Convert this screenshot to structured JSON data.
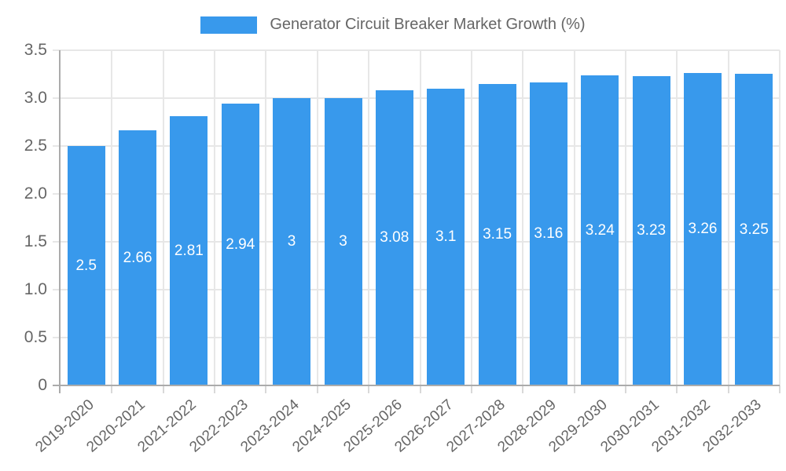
{
  "legend": {
    "label": "Generator Circuit Breaker Market Growth (%)"
  },
  "chart_data": {
    "type": "bar",
    "title": "Generator Circuit Breaker Market Growth (%)",
    "legend_position": "top",
    "categories": [
      "2019-2020",
      "2020-2021",
      "2021-2022",
      "2022-2023",
      "2023-2024",
      "2024-2025",
      "2025-2026",
      "2026-2027",
      "2027-2028",
      "2028-2029",
      "2029-2030",
      "2030-2031",
      "2031-2032",
      "2032-2033"
    ],
    "series": [
      {
        "name": "Generator Circuit Breaker Market Growth (%)",
        "values": [
          2.5,
          2.66,
          2.81,
          2.94,
          3,
          3,
          3.08,
          3.1,
          3.15,
          3.16,
          3.24,
          3.23,
          3.26,
          3.25
        ]
      }
    ],
    "xlabel": "",
    "ylabel": "",
    "ylim": [
      0,
      3.5
    ],
    "ytick_labels": [
      "0",
      "0.5",
      "1.0",
      "1.5",
      "2.0",
      "2.5",
      "3.0",
      "3.5"
    ],
    "grid": true,
    "value_labels_shown": true,
    "colors": {
      "bar": "#3899ec",
      "grid": "#e7e7e7",
      "axis": "#ababab",
      "tick": "#d9d9d9",
      "text": "#666666",
      "value_label": "#ffffff"
    }
  }
}
